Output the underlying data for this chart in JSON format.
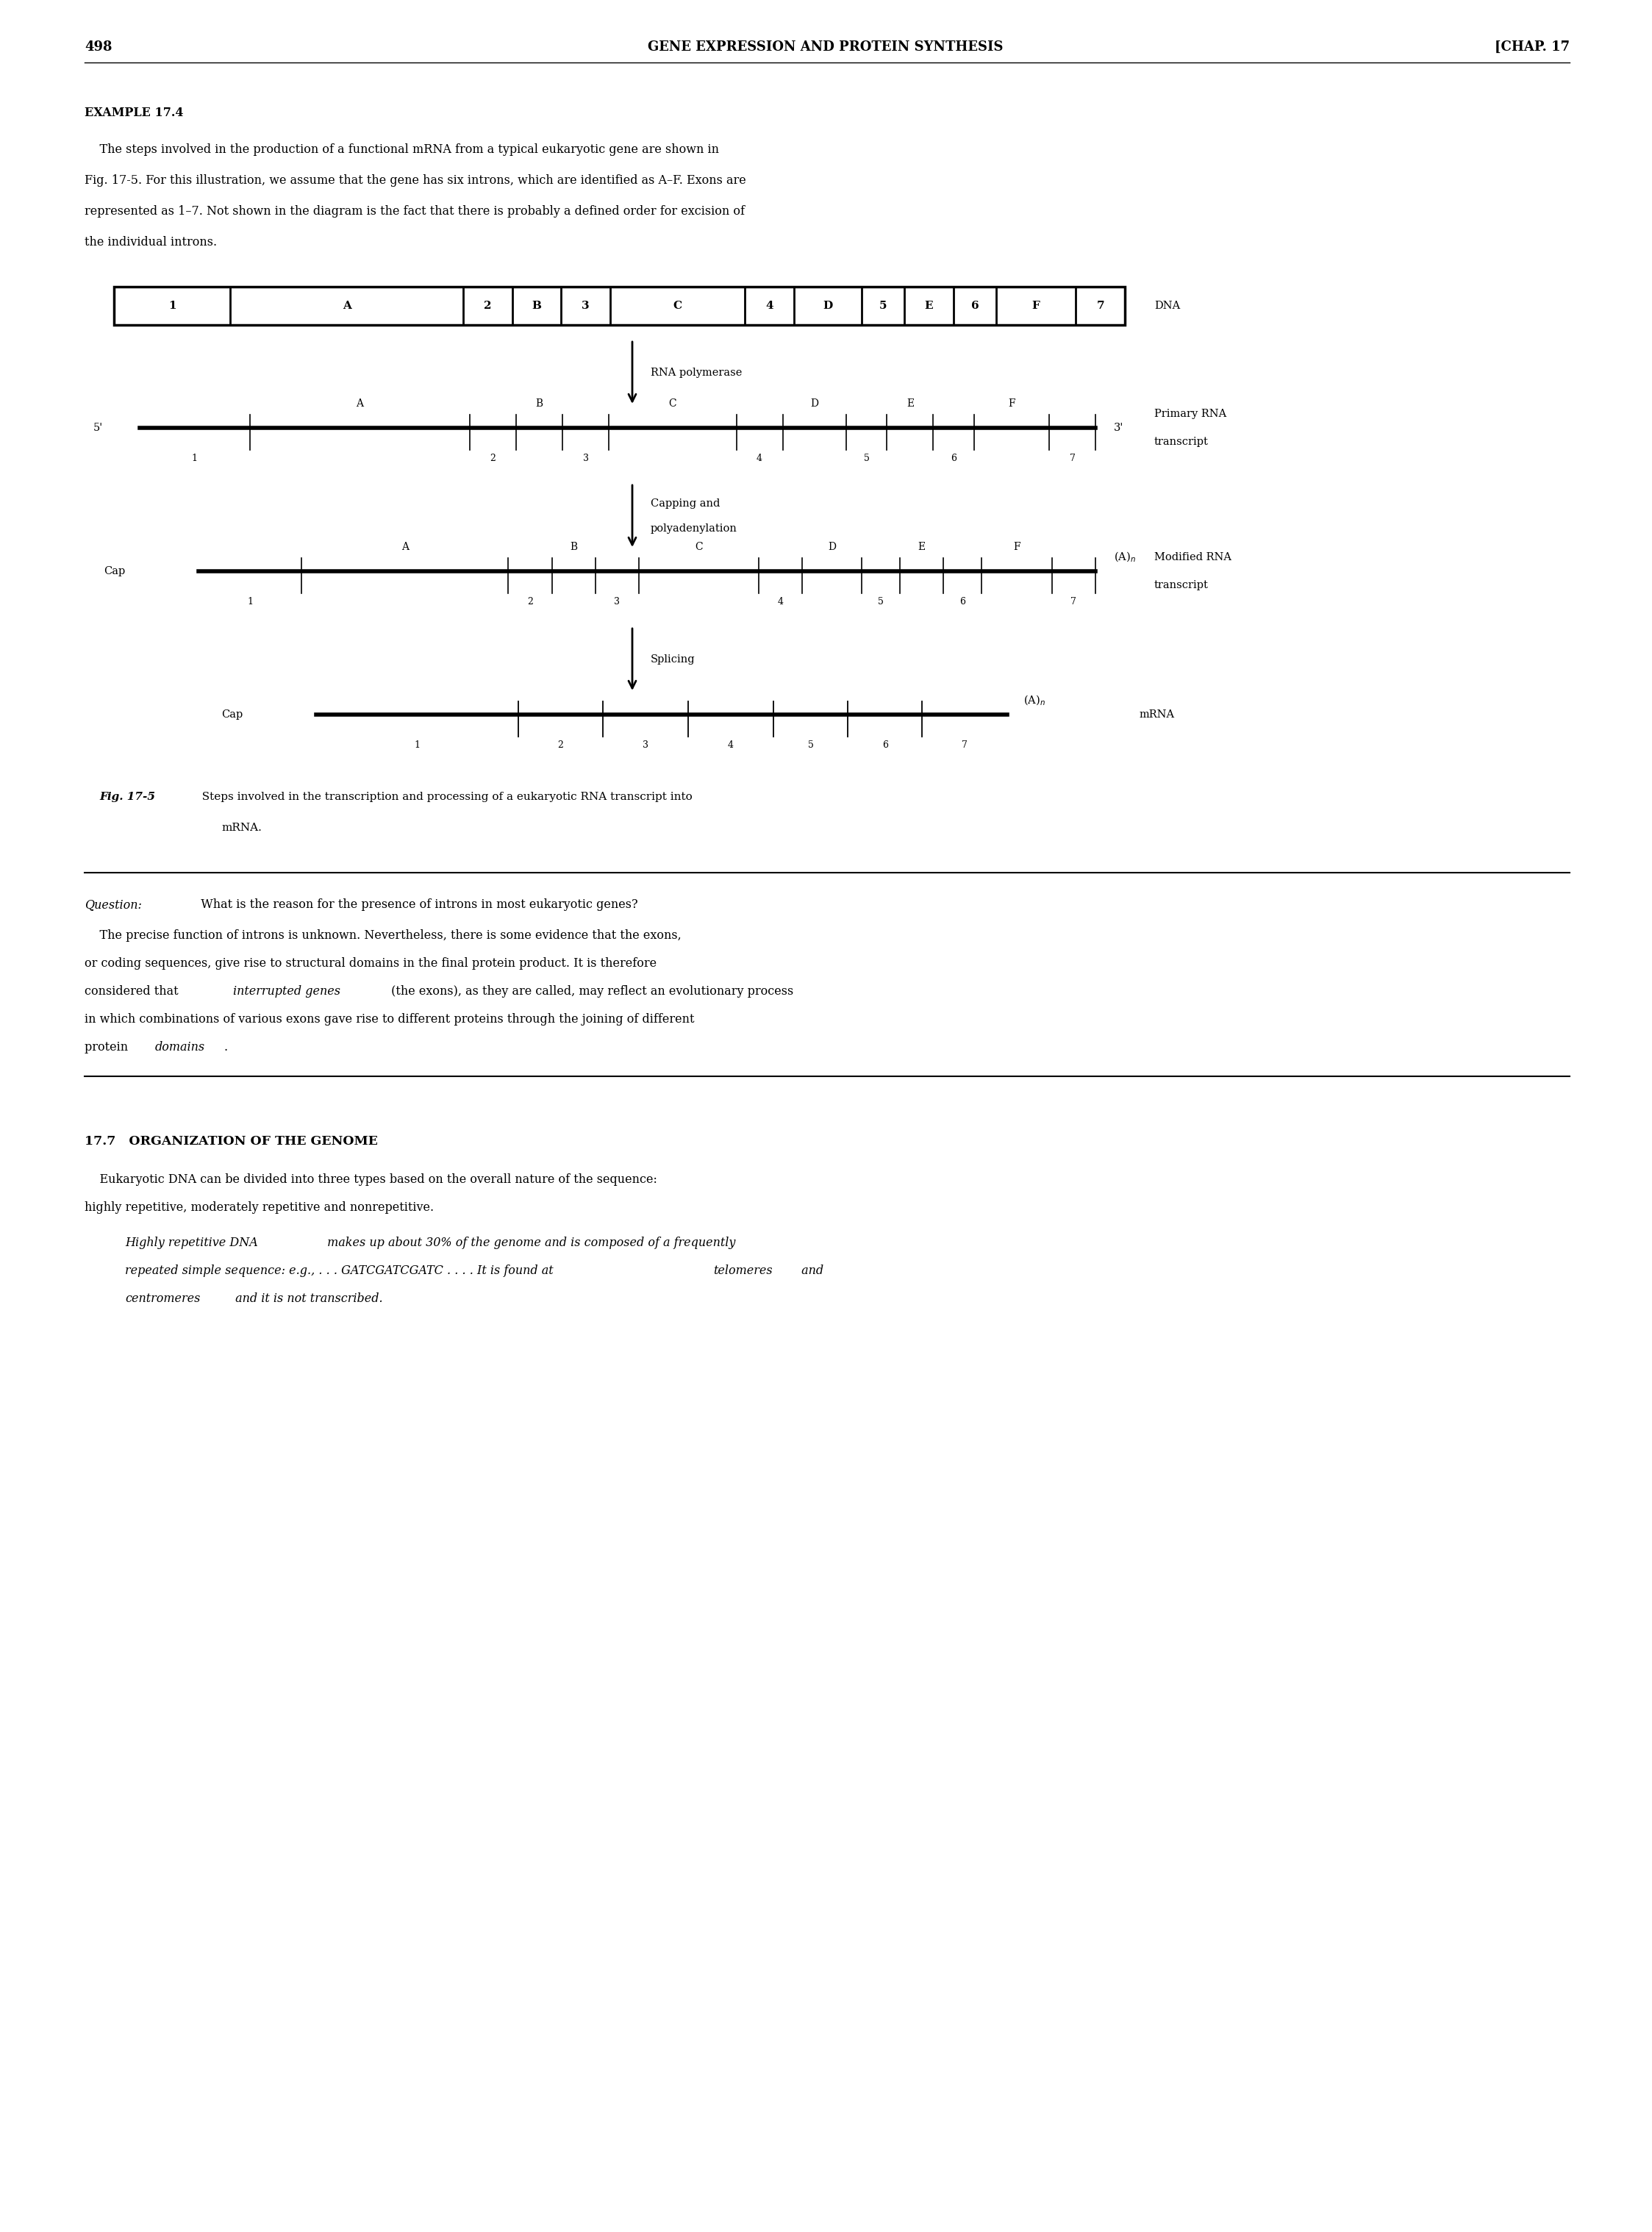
{
  "page_number": "498",
  "header_center": "GENE EXPRESSION AND PROTEIN SYNTHESIS",
  "header_right": "[CHAP. 17",
  "example_label": "EXAMPLE 17.4",
  "background": "#ffffff",
  "text_color": "#000000",
  "segments": [
    [
      "1",
      0.095,
      "exon"
    ],
    [
      "A",
      0.19,
      "intron"
    ],
    [
      "2",
      0.04,
      "exon"
    ],
    [
      "B",
      0.04,
      "intron"
    ],
    [
      "3",
      0.04,
      "exon"
    ],
    [
      "C",
      0.11,
      "intron"
    ],
    [
      "4",
      0.04,
      "exon"
    ],
    [
      "D",
      0.055,
      "intron"
    ],
    [
      "5",
      0.035,
      "exon"
    ],
    [
      "E",
      0.04,
      "intron"
    ],
    [
      "6",
      0.035,
      "exon"
    ],
    [
      "F",
      0.065,
      "intron"
    ],
    [
      "7",
      0.04,
      "exon"
    ]
  ]
}
